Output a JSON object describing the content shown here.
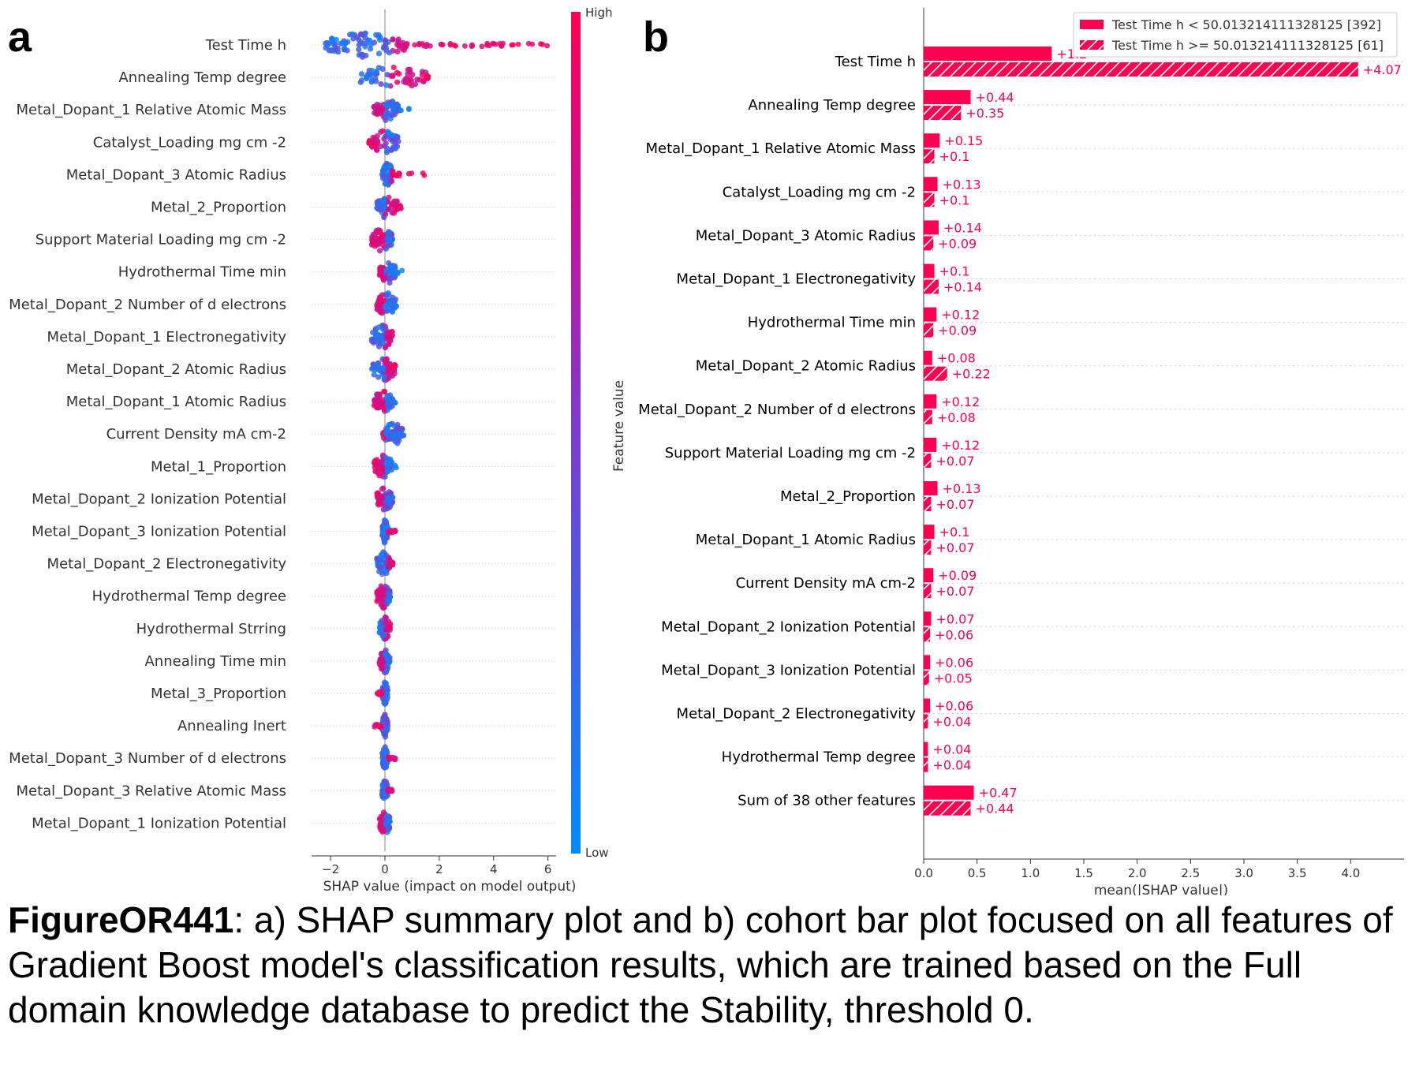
{
  "panel_a_letter": "a",
  "panel_b_letter": "b",
  "caption": {
    "bold": "FigureOR441",
    "text": ": a) SHAP summary plot and b) cohort bar plot focused on all features of Gradient Boost model's classification results, which are trained based on the Full domain knowledge database to predict the Stability, threshold 0."
  },
  "colors": {
    "high": "#ff0051",
    "low": "#008bfb",
    "mid": "#7c3ccf"
  },
  "chart_data": [
    {
      "type": "scatter",
      "subtype": "shap-beeswarm",
      "xlabel": "SHAP value (impact on model output)",
      "xticks": [
        -2,
        0,
        2,
        4,
        6
      ],
      "xlim": [
        -2.7,
        6.3
      ],
      "colorbar": {
        "label": "Feature value",
        "high": "High",
        "low": "Low"
      },
      "features": [
        "Test Time h",
        "Annealing Temp degree",
        "Metal_Dopant_1 Relative Atomic Mass",
        "Catalyst_Loading mg cm -2",
        "Metal_Dopant_3 Atomic Radius",
        "Metal_2_Proportion",
        "Support Material Loading mg cm -2",
        "Hydrothermal Time min",
        "Metal_Dopant_2 Number of d electrons",
        "Metal_Dopant_1 Electronegativity",
        "Metal_Dopant_2 Atomic Radius",
        "Metal_Dopant_1 Atomic Radius",
        "Current Density mA cm-2",
        "Metal_1_Proportion",
        "Metal_Dopant_2 Ionization Potential",
        "Metal_Dopant_3 Ionization Potential",
        "Metal_Dopant_2 Electronegativity",
        "Hydrothermal Temp degree",
        "Hydrothermal Strring",
        "Annealing Time min",
        "Metal_3_Proportion",
        "Annealing Inert",
        "Metal_Dopant_3 Number of d electrons",
        "Metal_Dopant_3 Relative Atomic Mass",
        "Metal_Dopant_1 Ionization Potential"
      ],
      "spread": [
        {
          "min": -2.2,
          "max": 6.0,
          "main_min": -2.2,
          "main_max": 0.8,
          "hi_start": 0.2,
          "dir": "right"
        },
        {
          "min": -1.0,
          "max": 1.6,
          "main_min": -0.9,
          "main_max": 1.5,
          "hi_start": 0.1,
          "dir": "right"
        },
        {
          "min": -0.4,
          "max": 1.0,
          "main_min": -0.4,
          "main_max": 0.5,
          "hi_start": 0.0,
          "dir": "left"
        },
        {
          "min": -0.6,
          "max": 0.6,
          "main_min": -0.5,
          "main_max": 0.5,
          "hi_start": 0.0,
          "dir": "left"
        },
        {
          "min": -0.1,
          "max": 1.5,
          "main_min": -0.1,
          "main_max": 0.3,
          "hi_start": 0.2,
          "dir": "right"
        },
        {
          "min": -0.3,
          "max": 0.6,
          "main_min": -0.3,
          "main_max": 0.5,
          "hi_start": 0.0,
          "dir": "right"
        },
        {
          "min": -0.5,
          "max": 0.3,
          "main_min": -0.5,
          "main_max": 0.3,
          "hi_start": 0.0,
          "dir": "left"
        },
        {
          "min": -0.2,
          "max": 0.7,
          "main_min": -0.2,
          "main_max": 0.4,
          "hi_start": 0.0,
          "dir": "left"
        },
        {
          "min": -0.3,
          "max": 0.5,
          "main_min": -0.3,
          "main_max": 0.4,
          "hi_start": 0.0,
          "dir": "left"
        },
        {
          "min": -0.5,
          "max": 0.3,
          "main_min": -0.5,
          "main_max": 0.3,
          "hi_start": 0.0,
          "dir": "right"
        },
        {
          "min": -0.5,
          "max": 0.4,
          "main_min": -0.5,
          "main_max": 0.4,
          "hi_start": 0.0,
          "dir": "right"
        },
        {
          "min": -0.4,
          "max": 0.5,
          "main_min": -0.4,
          "main_max": 0.3,
          "hi_start": 0.0,
          "dir": "left"
        },
        {
          "min": -0.1,
          "max": 0.7,
          "main_min": -0.1,
          "main_max": 0.7,
          "hi_start": 0.0,
          "dir": "left"
        },
        {
          "min": -0.4,
          "max": 0.6,
          "main_min": -0.4,
          "main_max": 0.3,
          "hi_start": 0.0,
          "dir": "left"
        },
        {
          "min": -0.3,
          "max": 0.3,
          "main_min": -0.3,
          "main_max": 0.3,
          "hi_start": 0.0,
          "dir": "left"
        },
        {
          "min": -0.1,
          "max": 0.4,
          "main_min": -0.1,
          "main_max": 0.1,
          "hi_start": 0.1,
          "dir": "right"
        },
        {
          "min": -0.3,
          "max": 0.3,
          "main_min": -0.3,
          "main_max": 0.2,
          "hi_start": 0.1,
          "dir": "right"
        },
        {
          "min": -0.3,
          "max": 0.2,
          "main_min": -0.3,
          "main_max": 0.2,
          "hi_start": 0.0,
          "dir": "left"
        },
        {
          "min": -0.2,
          "max": 0.2,
          "main_min": -0.2,
          "main_max": 0.2,
          "hi_start": 0.0,
          "dir": "right"
        },
        {
          "min": -0.2,
          "max": 0.2,
          "main_min": -0.2,
          "main_max": 0.2,
          "hi_start": 0.0,
          "dir": "left"
        },
        {
          "min": -0.3,
          "max": 0.1,
          "main_min": -0.1,
          "main_max": 0.1,
          "hi_start": -0.3,
          "dir": "left"
        },
        {
          "min": -0.4,
          "max": 0.1,
          "main_min": -0.1,
          "main_max": 0.1,
          "hi_start": -0.4,
          "dir": "left"
        },
        {
          "min": -0.1,
          "max": 0.4,
          "main_min": -0.1,
          "main_max": 0.1,
          "hi_start": 0.1,
          "dir": "right"
        },
        {
          "min": -0.2,
          "max": 0.3,
          "main_min": -0.1,
          "main_max": 0.1,
          "hi_start": 0.1,
          "dir": "right"
        },
        {
          "min": -0.2,
          "max": 0.2,
          "main_min": -0.2,
          "main_max": 0.2,
          "hi_start": 0.0,
          "dir": "left"
        }
      ]
    },
    {
      "type": "bar",
      "subtype": "shap-cohort-bar",
      "xlabel": "mean(|SHAP value|)",
      "xticks": [
        0.0,
        0.5,
        1.0,
        1.5,
        2.0,
        2.5,
        3.0,
        3.5,
        4.0
      ],
      "xlim": [
        0,
        4.5
      ],
      "series": [
        {
          "name": "Test Time h < 50.013214111328125 [392]",
          "pattern": "solid"
        },
        {
          "name": "Test Time h >= 50.013214111328125 [61]",
          "pattern": "hatched"
        }
      ],
      "categories": [
        "Test Time h",
        "Annealing Temp degree",
        "Metal_Dopant_1 Relative Atomic Mass",
        "Catalyst_Loading mg cm -2",
        "Metal_Dopant_3 Atomic Radius",
        "Metal_Dopant_1 Electronegativity",
        "Hydrothermal Time min",
        "Metal_Dopant_2 Atomic Radius",
        "Metal_Dopant_2 Number of d electrons",
        "Support Material Loading mg cm -2",
        "Metal_2_Proportion",
        "Metal_Dopant_1 Atomic Radius",
        "Current Density mA cm-2",
        "Metal_Dopant_2 Ionization Potential",
        "Metal_Dopant_3 Ionization Potential",
        "Metal_Dopant_2 Electronegativity",
        "Hydrothermal Temp degree",
        "Sum of 38 other features"
      ],
      "values_a": [
        1.2,
        0.44,
        0.15,
        0.13,
        0.14,
        0.1,
        0.12,
        0.08,
        0.12,
        0.12,
        0.13,
        0.1,
        0.09,
        0.07,
        0.06,
        0.06,
        0.04,
        0.47
      ],
      "values_b": [
        4.07,
        0.35,
        0.1,
        0.1,
        0.09,
        0.14,
        0.09,
        0.22,
        0.08,
        0.07,
        0.07,
        0.07,
        0.07,
        0.06,
        0.05,
        0.04,
        0.04,
        0.44
      ],
      "labels_a": [
        "+1.2",
        "+0.44",
        "+0.15",
        "+0.13",
        "+0.14",
        "+0.1",
        "+0.12",
        "+0.08",
        "+0.12",
        "+0.12",
        "+0.13",
        "+0.1",
        "+0.09",
        "+0.07",
        "+0.06",
        "+0.06",
        "+0.04",
        "+0.47"
      ],
      "labels_b": [
        "+4.07",
        "+0.35",
        "+0.1",
        "+0.1",
        "+0.09",
        "+0.14",
        "+0.09",
        "+0.22",
        "+0.08",
        "+0.07",
        "+0.07",
        "+0.07",
        "+0.07",
        "+0.06",
        "+0.05",
        "+0.04",
        "+0.04",
        "+0.44"
      ]
    }
  ]
}
